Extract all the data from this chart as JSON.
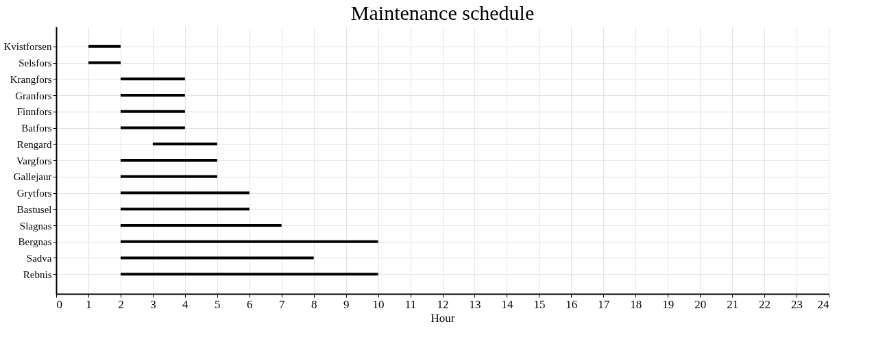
{
  "chart_data": {
    "type": "bar",
    "orientation": "horizontal",
    "title": "Maintenance schedule",
    "xlabel": "Hour",
    "categories": [
      "Kvistforsen",
      "Selsfors",
      "Krangfors",
      "Granfors",
      "Finnfors",
      "Batfors",
      "Rengard",
      "Vargfors",
      "Gallejaur",
      "Grytfors",
      "Bastusel",
      "Slagnas",
      "Bergnas",
      "Sadva",
      "Rebnis"
    ],
    "base": [
      1,
      1,
      2,
      2,
      2,
      2,
      3,
      2,
      2,
      2,
      2,
      2,
      2,
      2,
      2
    ],
    "values": [
      1,
      1,
      2,
      2,
      2,
      2,
      2,
      3,
      3,
      4,
      4,
      5,
      8,
      6,
      8
    ],
    "color": "#000000",
    "xlim": [
      0,
      24
    ],
    "xticks": [
      0,
      1,
      2,
      3,
      4,
      5,
      6,
      7,
      8,
      9,
      10,
      11,
      12,
      13,
      14,
      15,
      16,
      17,
      18,
      19,
      20,
      21,
      22,
      23,
      24
    ],
    "grid": true
  }
}
